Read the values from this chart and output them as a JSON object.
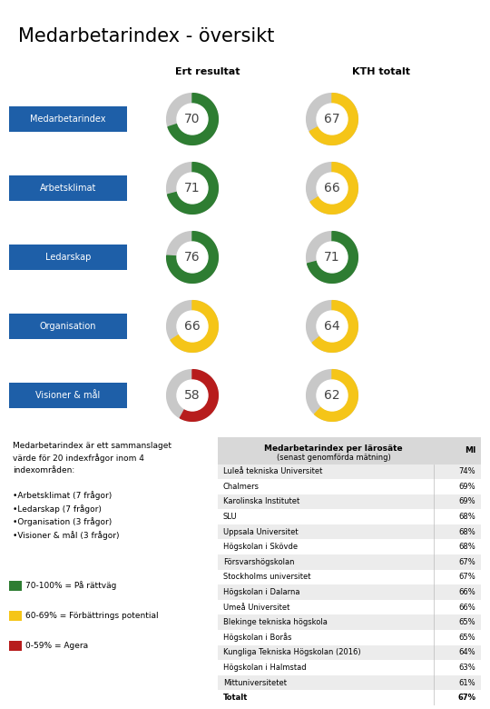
{
  "title": "Medarbetarindex - översikt",
  "col1_header": "Ert resultat",
  "col2_header": "KTH totalt",
  "rows": [
    {
      "label": "Medarbetarindex",
      "val1": 70,
      "val2": 67,
      "color1": "#2e7d32",
      "color2": "#f5c518"
    },
    {
      "label": "Arbetsklimat",
      "val1": 71,
      "val2": 66,
      "color1": "#2e7d32",
      "color2": "#f5c518"
    },
    {
      "label": "Ledarskap",
      "val1": 76,
      "val2": 71,
      "color1": "#2e7d32",
      "color2": "#2e7d32"
    },
    {
      "label": "Organisation",
      "val1": 66,
      "val2": 64,
      "color1": "#f5c518",
      "color2": "#f5c518"
    },
    {
      "label": "Visioner & mål",
      "val1": 58,
      "val2": 62,
      "color1": "#b71c1c",
      "color2": "#f5c518"
    }
  ],
  "label_bg": "#1e5fa8",
  "label_fg": "#ffffff",
  "donut_bg": "#cccccc",
  "table_header": "Medarbetarindex per lärosäte",
  "table_subheader": "(senast genomförda mätning)",
  "table_col_header": "MI",
  "table_rows": [
    [
      "Luleå tekniska Universitet",
      "74%"
    ],
    [
      "Chalmers",
      "69%"
    ],
    [
      "Karolinska Institutet",
      "69%"
    ],
    [
      "SLU",
      "68%"
    ],
    [
      "Uppsala Universitet",
      "68%"
    ],
    [
      "Högskolan i Skövde",
      "68%"
    ],
    [
      "Försvarshögskolan",
      "67%"
    ],
    [
      "Stockholms universitet",
      "67%"
    ],
    [
      "Högskolan i Dalarna",
      "66%"
    ],
    [
      "Umeå Universitet",
      "66%"
    ],
    [
      "Blekinge tekniska högskola",
      "65%"
    ],
    [
      "Högskolan i Borås",
      "65%"
    ],
    [
      "Kungliga Tekniska Högskolan (2016)",
      "64%"
    ],
    [
      "Högskolan i Halmstad",
      "63%"
    ],
    [
      "Mittuniversitetet",
      "61%"
    ],
    [
      "Totalt",
      "67%"
    ]
  ],
  "legend": [
    {
      "color": "#2e7d32",
      "label": "70-100% = På rättväg"
    },
    {
      "color": "#f5c518",
      "label": "60-69% = Förbättrings potential"
    },
    {
      "color": "#b71c1c",
      "label": "0-59% = Agera"
    }
  ],
  "desc_lines": [
    "Medarbetarindex är ett sammanslaget",
    "värde för 20 indexfrågor inom 4",
    "indexområden:",
    "",
    "•Arbetsklimat (7 frågor)",
    "•Ledarskap (7 frågor)",
    "•Organisation (3 frågor)",
    "•Visioner & mål (3 frågor)"
  ]
}
